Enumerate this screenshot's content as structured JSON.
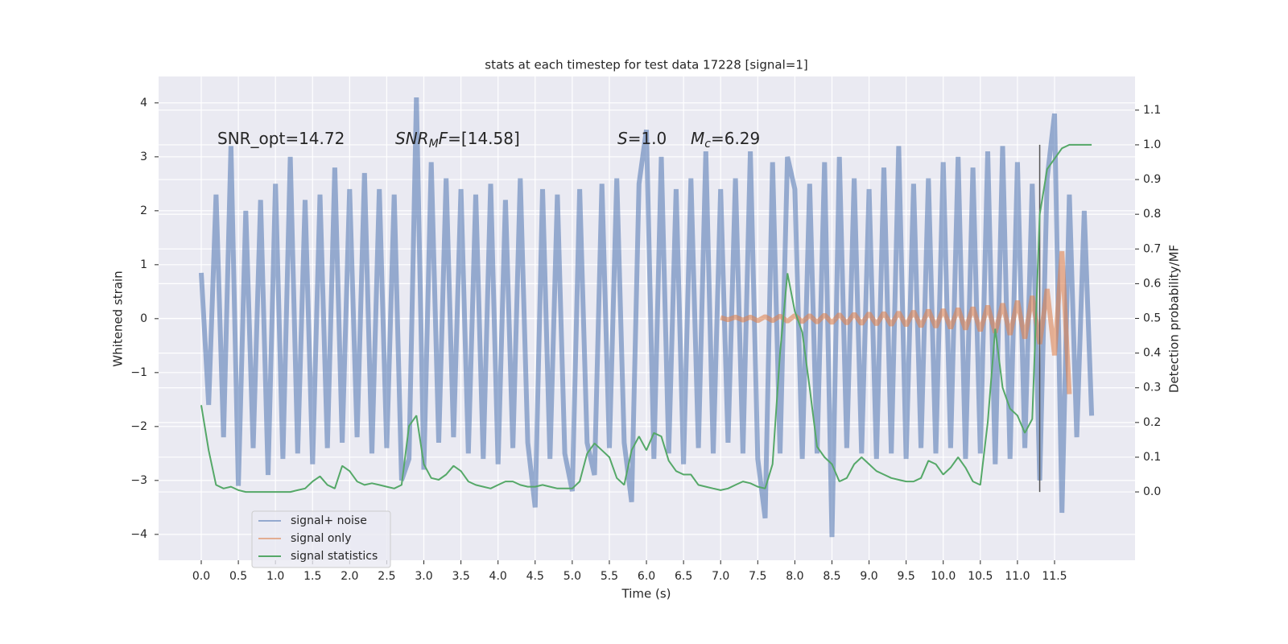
{
  "chart_data": {
    "type": "line",
    "title": "stats at each timestep for test data 17228 [signal=1]",
    "x_label": "Time (s)",
    "y_label": "Whitened strain",
    "y2_label": "Detection probability/MF",
    "xlim": [
      -0.575,
      12.585
    ],
    "ylim": [
      -4.48,
      4.49
    ],
    "y2lim": [
      -0.197,
      1.197
    ],
    "xticks": [
      {
        "value": 0,
        "label": "0.0"
      },
      0.5,
      {
        "value": 1,
        "label": "1.0"
      },
      1.5,
      {
        "value": 2,
        "label": "2.0"
      },
      2.5,
      {
        "value": 3,
        "label": "3.0"
      },
      3.5,
      {
        "value": 4,
        "label": "4.0"
      },
      4.5,
      {
        "value": 5,
        "label": "5.0"
      },
      5.5,
      {
        "value": 6,
        "label": "6.0"
      },
      6.5,
      {
        "value": 7,
        "label": "7.0"
      },
      7.5,
      {
        "value": 8,
        "label": "8.0"
      },
      8.5,
      {
        "value": 9,
        "label": "9.0"
      },
      9.5,
      {
        "value": 10,
        "label": "10.0"
      },
      10.5,
      {
        "value": 11,
        "label": "11.0"
      },
      11.5
    ],
    "yticks": [
      {
        "value": -4,
        "label": "−4"
      },
      {
        "value": -3,
        "label": "−3"
      },
      {
        "value": -2,
        "label": "−2"
      },
      {
        "value": -1,
        "label": "−1"
      },
      0,
      1,
      2,
      3,
      4
    ],
    "y2ticks": [
      {
        "value": 0,
        "label": "0.0"
      },
      0.1,
      0.2,
      0.3,
      0.4,
      0.5,
      0.6,
      0.7,
      0.8,
      0.9,
      {
        "value": 1,
        "label": "1.0"
      },
      1.1
    ],
    "grid": true,
    "legend": "lower left",
    "annotations": [
      [
        {
          "text": "SNR_opt=14.72"
        }
      ],
      [
        {
          "text": "SNR",
          "style": "italic"
        },
        {
          "text": "M",
          "style": "sub"
        },
        {
          "text": "F",
          "style": "italic"
        },
        {
          "text": "=[14.58]"
        }
      ],
      [
        {
          "text": "S",
          "style": "italic"
        },
        {
          "text": "=1.0"
        }
      ],
      [
        {
          "text": "M",
          "style": "italic"
        },
        {
          "text": "c",
          "style": "sub"
        },
        {
          "text": "=6.29"
        }
      ]
    ],
    "vline": {
      "x": 11.3,
      "y2": [
        0,
        1
      ],
      "color": "#555555"
    },
    "x": [
      0,
      0.1,
      0.2,
      0.3,
      0.4,
      0.5,
      0.6,
      0.7,
      0.8,
      0.9,
      1,
      1.1,
      1.2,
      1.3,
      1.4,
      1.5,
      1.6,
      1.7,
      1.8,
      1.9,
      2,
      2.1,
      2.2,
      2.3,
      2.4,
      2.5,
      2.6,
      2.7,
      2.8,
      2.9,
      3,
      3.1,
      3.2,
      3.3,
      3.4,
      3.5,
      3.6,
      3.7,
      3.8,
      3.9,
      4,
      4.1,
      4.2,
      4.3,
      4.4,
      4.5,
      4.6,
      4.7,
      4.8,
      4.9,
      5,
      5.1,
      5.2,
      5.3,
      5.4,
      5.5,
      5.6,
      5.7,
      5.8,
      5.9,
      6,
      6.1,
      6.2,
      6.3,
      6.4,
      6.5,
      6.6,
      6.7,
      6.8,
      6.9,
      7,
      7.1,
      7.2,
      7.3,
      7.4,
      7.5,
      7.6,
      7.7,
      7.8,
      7.9,
      8,
      8.1,
      8.2,
      8.3,
      8.4,
      8.5,
      8.6,
      8.7,
      8.8,
      8.9,
      9,
      9.1,
      9.2,
      9.3,
      9.4,
      9.5,
      9.6,
      9.7,
      9.8,
      9.9,
      10,
      10.1,
      10.2,
      10.3,
      10.4,
      10.5,
      10.6,
      10.7,
      10.8,
      10.9,
      11,
      11.1,
      11.2,
      11.3,
      11.4,
      11.5,
      11.6,
      11.7,
      11.8,
      11.9,
      12
    ],
    "series": [
      {
        "name": "signal+ noise",
        "color": "#4c72b0",
        "alpha": 0.55,
        "axis": "y",
        "values": [
          0.85,
          -1.6,
          2.3,
          -2.2,
          3.2,
          -3.1,
          2.0,
          -2.4,
          2.2,
          -2.9,
          2.5,
          -2.6,
          3.0,
          -2.5,
          2.2,
          -2.7,
          2.3,
          -2.4,
          2.8,
          -2.3,
          2.4,
          -2.2,
          2.7,
          -2.5,
          2.4,
          -2.4,
          2.3,
          -3.0,
          -2.6,
          4.1,
          -2.8,
          2.9,
          -2.3,
          2.6,
          -2.2,
          2.4,
          -2.5,
          2.3,
          -2.6,
          2.5,
          -2.7,
          2.2,
          -2.4,
          2.6,
          -2.3,
          -3.5,
          2.4,
          -2.6,
          2.3,
          -2.5,
          -3.2,
          2.4,
          -2.3,
          -2.9,
          2.5,
          -2.4,
          2.6,
          -2.3,
          -3.4,
          2.5,
          3.5,
          -2.6,
          3.0,
          -2.5,
          2.4,
          -2.7,
          2.6,
          -2.4,
          3.1,
          -2.5,
          2.4,
          -2.3,
          2.6,
          -2.5,
          3.1,
          -2.6,
          -3.7,
          2.9,
          -2.5,
          3.0,
          2.4,
          -2.6,
          2.5,
          -2.5,
          2.9,
          -4.05,
          3.0,
          -2.4,
          2.6,
          -2.5,
          2.4,
          -2.6,
          2.8,
          -2.5,
          3.2,
          -2.6,
          2.5,
          -2.4,
          2.6,
          -2.5,
          2.9,
          -2.4,
          3.0,
          -2.6,
          2.8,
          -2.5,
          3.1,
          -2.7,
          3.2,
          -2.6,
          2.9,
          -2.4,
          2.5,
          -3.0,
          2.6,
          3.8,
          -3.6,
          2.3,
          -2.2,
          2.0,
          -1.8
        ]
      },
      {
        "name": "signal only",
        "color": "#dd8452",
        "alpha": 0.6,
        "axis": "y",
        "values": [
          null,
          null,
          null,
          null,
          null,
          null,
          null,
          null,
          null,
          null,
          null,
          null,
          null,
          null,
          null,
          null,
          null,
          null,
          null,
          null,
          null,
          null,
          null,
          null,
          null,
          null,
          null,
          null,
          null,
          null,
          null,
          null,
          null,
          null,
          null,
          null,
          null,
          null,
          null,
          null,
          null,
          null,
          null,
          null,
          null,
          null,
          null,
          null,
          null,
          null,
          null,
          null,
          null,
          null,
          null,
          null,
          null,
          null,
          null,
          null,
          null,
          null,
          null,
          null,
          null,
          null,
          null,
          null,
          null,
          null,
          0.02,
          -0.02,
          0.03,
          -0.03,
          0.03,
          -0.04,
          0.04,
          -0.04,
          0.05,
          -0.05,
          0.06,
          -0.06,
          0.06,
          -0.07,
          0.07,
          -0.08,
          0.08,
          -0.09,
          0.09,
          -0.1,
          0.1,
          -0.11,
          0.11,
          -0.12,
          0.12,
          -0.13,
          0.14,
          -0.15,
          0.16,
          -0.16,
          0.17,
          -0.18,
          0.19,
          -0.2,
          0.21,
          -0.23,
          0.24,
          -0.26,
          0.28,
          -0.3,
          0.33,
          -0.37,
          0.42,
          -0.47,
          0.55,
          -0.68,
          1.25,
          -1.4,
          null,
          null,
          null
        ]
      },
      {
        "name": "signal statistics",
        "color": "#55a868",
        "alpha": 1,
        "axis": "y2",
        "values": [
          0.25,
          0.12,
          0.02,
          0.01,
          0.015,
          0.005,
          0,
          0,
          0,
          0,
          0,
          0,
          0,
          0.005,
          0.01,
          0.03,
          0.045,
          0.02,
          0.01,
          0.075,
          0.06,
          0.03,
          0.02,
          0.025,
          0.02,
          0.015,
          0.01,
          0.02,
          0.19,
          0.22,
          0.08,
          0.04,
          0.035,
          0.05,
          0.075,
          0.06,
          0.03,
          0.02,
          0.015,
          0.01,
          0.02,
          0.03,
          0.03,
          0.02,
          0.015,
          0.015,
          0.02,
          0.015,
          0.01,
          0.01,
          0.01,
          0.03,
          0.11,
          0.14,
          0.12,
          0.1,
          0.04,
          0.02,
          0.12,
          0.16,
          0.12,
          0.17,
          0.16,
          0.09,
          0.06,
          0.05,
          0.05,
          0.02,
          0.015,
          0.01,
          0.005,
          0.01,
          0.02,
          0.03,
          0.025,
          0.015,
          0.01,
          0.08,
          0.4,
          0.63,
          0.52,
          0.46,
          0.3,
          0.13,
          0.1,
          0.08,
          0.03,
          0.04,
          0.08,
          0.1,
          0.08,
          0.06,
          0.05,
          0.04,
          0.035,
          0.03,
          0.03,
          0.04,
          0.09,
          0.08,
          0.05,
          0.07,
          0.1,
          0.07,
          0.03,
          0.02,
          0.2,
          0.47,
          0.3,
          0.24,
          0.22,
          0.17,
          0.21,
          0.8,
          0.93,
          0.96,
          0.99,
          1,
          1,
          1,
          1
        ]
      }
    ]
  }
}
